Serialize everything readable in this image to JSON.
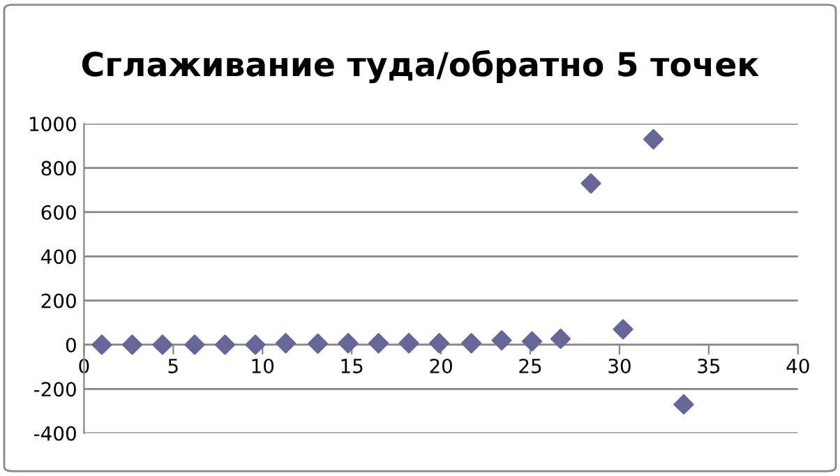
{
  "chart_data": {
    "type": "scatter",
    "title": "Сглаживание туда/обратно 5 точек",
    "x": [
      1.0,
      2.7,
      4.4,
      6.2,
      7.9,
      9.6,
      11.3,
      13.1,
      14.8,
      16.5,
      18.2,
      19.9,
      21.7,
      23.4,
      25.1,
      26.7,
      28.4,
      30.2,
      31.9,
      33.6
    ],
    "series": [
      {
        "color": "#666699",
        "values": [
          0,
          0,
          0,
          0,
          0,
          0,
          7,
          5,
          7,
          7,
          7,
          7,
          7,
          20,
          15,
          27,
          730,
          70,
          930,
          -270
        ]
      }
    ],
    "marker": "diamond",
    "xlim": [
      0,
      40
    ],
    "xticks": [
      0,
      5,
      10,
      15,
      20,
      25,
      30,
      35,
      40
    ],
    "ylim": [
      -400,
      1000
    ],
    "yticks": [
      -400,
      -200,
      0,
      200,
      400,
      600,
      800,
      1000
    ],
    "grid": "y",
    "legend": false
  }
}
